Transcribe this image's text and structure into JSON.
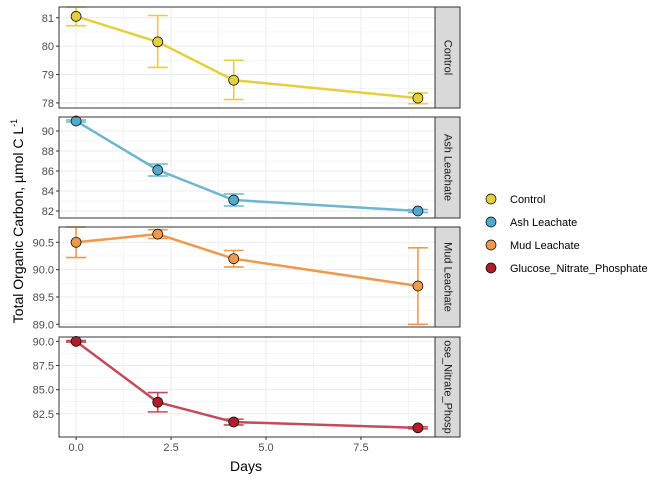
{
  "chart_data": {
    "type": "line",
    "xlabel": "Days",
    "ylabel": "Total Organic Carbon, µmol C L",
    "ylabel_superscript": "-1",
    "x_ticks": [
      "0.0",
      "2.5",
      "5.0",
      "7.5"
    ],
    "x_tick_values": [
      0,
      2.5,
      5,
      7.5
    ],
    "xlim": [
      -0.45,
      9.45
    ],
    "grid": true,
    "legend_position": "right",
    "panels": [
      {
        "strip": "Control",
        "series": "Control",
        "color": "#E6CF3E",
        "fill": "#E6CF3E",
        "ylim": [
          77.82,
          81.38
        ],
        "y_ticks": [
          "78",
          "79",
          "80",
          "81"
        ],
        "y_tick_values": [
          78,
          79,
          80,
          81
        ],
        "points": [
          {
            "x": 0.0,
            "y": 81.05,
            "ymin": 80.72,
            "ymax": 81.38
          },
          {
            "x": 2.15,
            "y": 80.15,
            "ymin": 79.25,
            "ymax": 81.08
          },
          {
            "x": 4.15,
            "y": 78.8,
            "ymin": 78.12,
            "ymax": 79.5
          },
          {
            "x": 9.0,
            "y": 78.17,
            "ymin": 77.97,
            "ymax": 78.35
          }
        ]
      },
      {
        "strip": "Ash Leachate",
        "series": "Ash Leachate",
        "color": "#6CB6D0",
        "fill": "#52A9CE",
        "ylim": [
          81.3,
          91.4
        ],
        "y_ticks": [
          "82",
          "84",
          "86",
          "88",
          "90"
        ],
        "y_tick_values": [
          82,
          84,
          86,
          88,
          90
        ],
        "points": [
          {
            "x": 0.0,
            "y": 91.0,
            "ymin": 90.9,
            "ymax": 91.1
          },
          {
            "x": 2.15,
            "y": 86.1,
            "ymin": 85.5,
            "ymax": 86.7
          },
          {
            "x": 4.15,
            "y": 83.1,
            "ymin": 82.5,
            "ymax": 83.7
          },
          {
            "x": 9.0,
            "y": 82.0,
            "ymin": 81.85,
            "ymax": 82.15
          }
        ]
      },
      {
        "strip": "Mud Leachate",
        "series": "Mud Leachate",
        "color": "#EE9A4D",
        "fill": "#EE9A4D",
        "ylim": [
          88.95,
          90.78
        ],
        "y_ticks": [
          "89.0",
          "89.5",
          "90.0",
          "90.5"
        ],
        "y_tick_values": [
          89.0,
          89.5,
          90.0,
          90.5
        ],
        "points": [
          {
            "x": 0.0,
            "y": 90.5,
            "ymin": 90.22,
            "ymax": 90.78
          },
          {
            "x": 2.15,
            "y": 90.65,
            "ymin": 90.57,
            "ymax": 90.73
          },
          {
            "x": 4.15,
            "y": 90.2,
            "ymin": 90.05,
            "ymax": 90.35
          },
          {
            "x": 9.0,
            "y": 89.7,
            "ymin": 89.0,
            "ymax": 90.4
          }
        ]
      },
      {
        "strip": "ose_Nitrate_Phosp",
        "series": "Glucose_Nitrate_Phosphate",
        "color": "#C24B5C",
        "fill": "#B01E2E",
        "ylim": [
          80.1,
          90.45
        ],
        "y_ticks": [
          "82.5",
          "85.0",
          "87.5",
          "90.0"
        ],
        "y_tick_values": [
          82.5,
          85.0,
          87.5,
          90.0
        ],
        "points": [
          {
            "x": 0.0,
            "y": 90.0,
            "ymin": 89.92,
            "ymax": 90.08
          },
          {
            "x": 2.15,
            "y": 83.7,
            "ymin": 82.7,
            "ymax": 84.7
          },
          {
            "x": 4.15,
            "y": 81.65,
            "ymin": 81.35,
            "ymax": 81.95
          },
          {
            "x": 9.0,
            "y": 81.05,
            "ymin": 80.95,
            "ymax": 81.15
          }
        ]
      }
    ],
    "legend": [
      {
        "label": "Control",
        "fill": "#E6CF3E"
      },
      {
        "label": "Ash Leachate",
        "fill": "#52A9CE"
      },
      {
        "label": "Mud Leachate",
        "fill": "#EE9A4D"
      },
      {
        "label": "Glucose_Nitrate_Phosphate",
        "fill": "#B01E2E"
      }
    ]
  }
}
